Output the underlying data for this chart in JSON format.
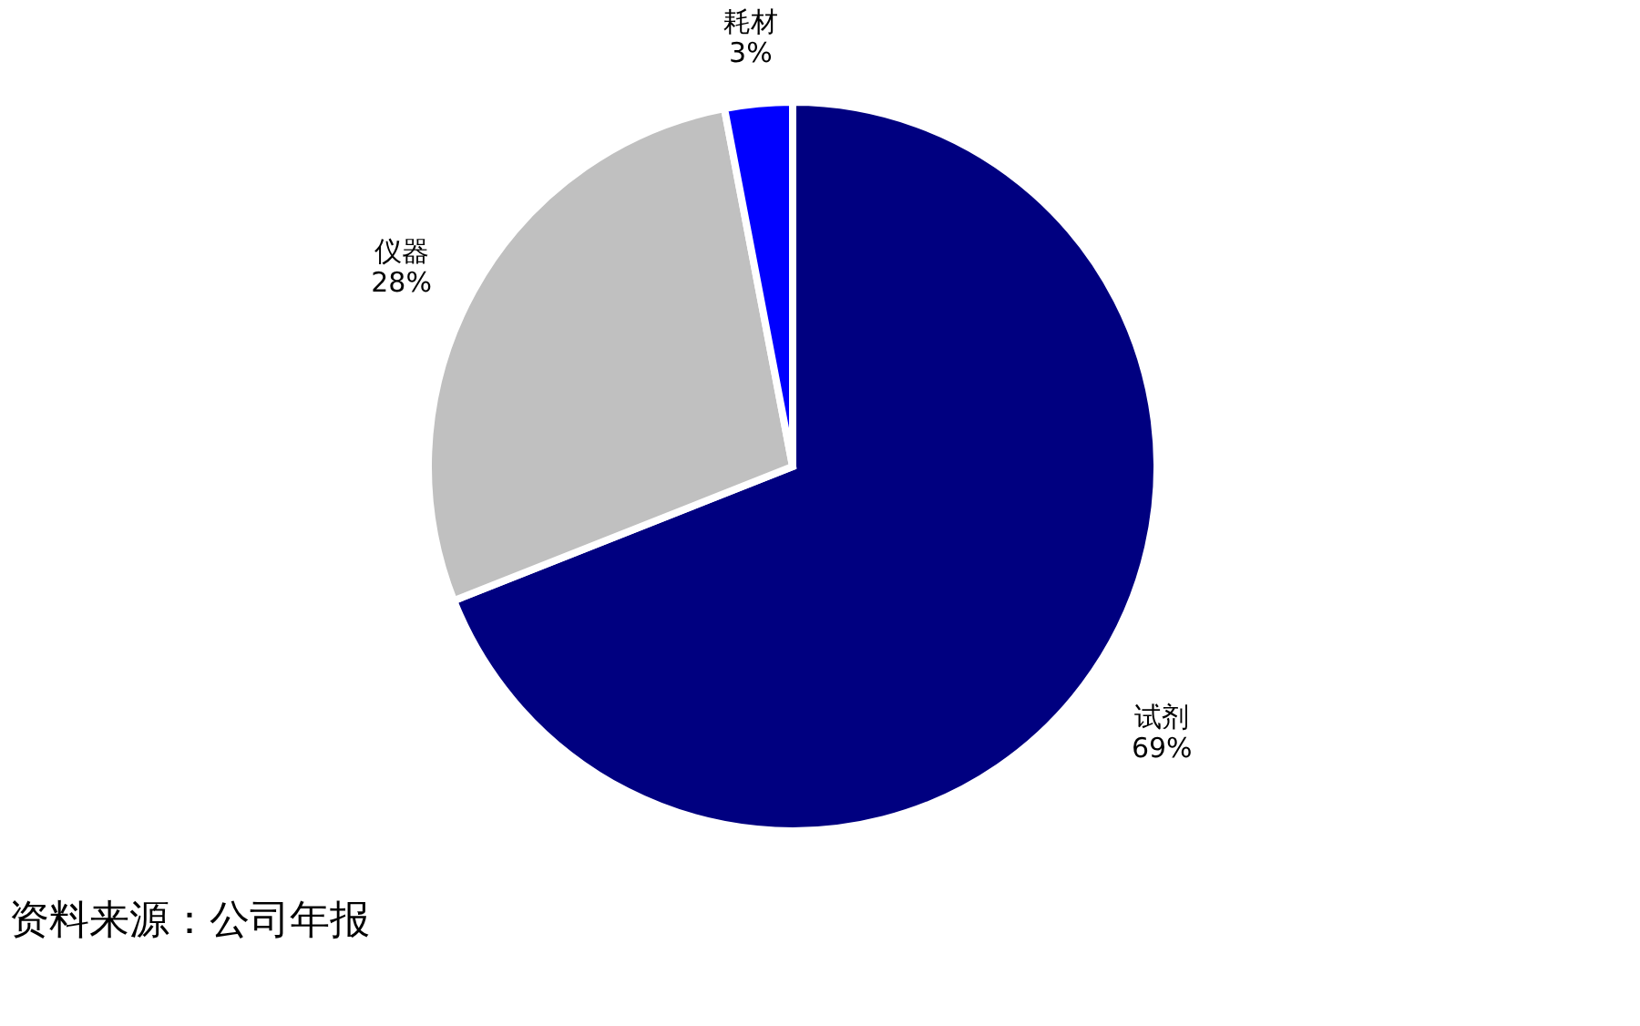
{
  "chart_data": {
    "type": "pie",
    "categories": [
      "试剂",
      "仪器",
      "耗材"
    ],
    "values": [
      69,
      28,
      3
    ],
    "colors": [
      "#000080",
      "#c0c0c0",
      "#0000ff"
    ],
    "value_labels": [
      "69%",
      "28%",
      "3%"
    ],
    "legend": false,
    "annotations": [
      "资料来源：公司年报"
    ]
  }
}
